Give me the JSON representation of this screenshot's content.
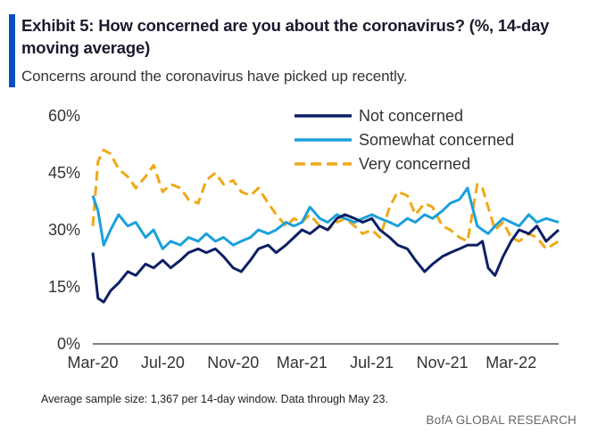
{
  "header": {
    "title": "Exhibit 5: How concerned are you about the coronavirus? (%, 14-day moving average)",
    "subtitle": "Concerns around the coronavirus have picked up recently."
  },
  "footer": {
    "note": "Average sample size: 1,367  per 14-day window.  Data through May 23.",
    "source": "BofA GLOBAL RESEARCH"
  },
  "colors": {
    "accent": "#0a4fc2",
    "not_concerned": "#0d1f66",
    "somewhat_concerned": "#1aa0dc",
    "very_concerned": "#f0a818"
  },
  "chart_data": {
    "type": "line",
    "title": "How concerned are you about the coronavirus? (%, 14-day moving average)",
    "x_tick_labels": [
      "Mar-20",
      "Jul-20",
      "Nov-20",
      "Mar-21",
      "Jul-21",
      "Nov-21",
      "Mar-22"
    ],
    "y_tick_labels": [
      "0%",
      "15%",
      "30%",
      "45%",
      "60%"
    ],
    "ylim": [
      0,
      60
    ],
    "xlim": [
      "2020-03-01",
      "2022-05-23"
    ],
    "grid": false,
    "legend_position": "top-right",
    "series": [
      {
        "name": "Not concerned",
        "style": "solid",
        "x": [
          "2020-03-01",
          "2020-03-10",
          "2020-03-20",
          "2020-04-01",
          "2020-04-15",
          "2020-05-01",
          "2020-05-15",
          "2020-06-01",
          "2020-06-15",
          "2020-07-01",
          "2020-07-15",
          "2020-08-01",
          "2020-08-15",
          "2020-09-01",
          "2020-09-15",
          "2020-10-01",
          "2020-10-15",
          "2020-11-01",
          "2020-11-15",
          "2020-12-01",
          "2020-12-15",
          "2021-01-01",
          "2021-01-15",
          "2021-02-01",
          "2021-02-15",
          "2021-03-01",
          "2021-03-15",
          "2021-04-01",
          "2021-04-15",
          "2021-05-01",
          "2021-05-15",
          "2021-06-01",
          "2021-06-15",
          "2021-07-01",
          "2021-07-15",
          "2021-08-01",
          "2021-08-15",
          "2021-09-01",
          "2021-09-15",
          "2021-10-01",
          "2021-10-15",
          "2021-11-01",
          "2021-11-15",
          "2021-12-01",
          "2021-12-15",
          "2022-01-01",
          "2022-01-10",
          "2022-01-20",
          "2022-02-01",
          "2022-02-15",
          "2022-03-01",
          "2022-03-15",
          "2022-04-01",
          "2022-04-15",
          "2022-05-01",
          "2022-05-23"
        ],
        "values": [
          24,
          12,
          11,
          14,
          16,
          19,
          18,
          21,
          20,
          22,
          20,
          22,
          24,
          25,
          24,
          25,
          23,
          20,
          19,
          22,
          25,
          26,
          24,
          26,
          28,
          30,
          29,
          31,
          30,
          33,
          34,
          33,
          32,
          33,
          30,
          28,
          26,
          25,
          22,
          19,
          21,
          23,
          24,
          25,
          26,
          26,
          27,
          20,
          18,
          23,
          27,
          30,
          29,
          31,
          27,
          30
        ]
      },
      {
        "name": "Somewhat concerned",
        "style": "solid",
        "x": [
          "2020-03-01",
          "2020-03-10",
          "2020-03-20",
          "2020-04-01",
          "2020-04-15",
          "2020-05-01",
          "2020-05-15",
          "2020-06-01",
          "2020-06-15",
          "2020-07-01",
          "2020-07-15",
          "2020-08-01",
          "2020-08-15",
          "2020-09-01",
          "2020-09-15",
          "2020-10-01",
          "2020-10-15",
          "2020-11-01",
          "2020-11-15",
          "2020-12-01",
          "2020-12-15",
          "2021-01-01",
          "2021-01-15",
          "2021-02-01",
          "2021-02-15",
          "2021-03-01",
          "2021-03-15",
          "2021-04-01",
          "2021-04-15",
          "2021-05-01",
          "2021-05-15",
          "2021-06-01",
          "2021-06-15",
          "2021-07-01",
          "2021-07-15",
          "2021-08-01",
          "2021-08-15",
          "2021-09-01",
          "2021-09-15",
          "2021-10-01",
          "2021-10-15",
          "2021-11-01",
          "2021-11-15",
          "2021-12-01",
          "2021-12-15",
          "2022-01-01",
          "2022-01-10",
          "2022-01-20",
          "2022-02-01",
          "2022-02-15",
          "2022-03-01",
          "2022-03-15",
          "2022-04-01",
          "2022-04-15",
          "2022-05-01",
          "2022-05-23"
        ],
        "values": [
          39,
          35,
          26,
          30,
          34,
          31,
          32,
          28,
          30,
          25,
          27,
          26,
          28,
          27,
          29,
          27,
          28,
          26,
          27,
          28,
          30,
          29,
          30,
          32,
          31,
          32,
          36,
          33,
          32,
          34,
          33,
          32,
          33,
          34,
          33,
          32,
          31,
          33,
          32,
          34,
          33,
          35,
          37,
          38,
          41,
          31,
          30,
          29,
          31,
          33,
          32,
          31,
          34,
          32,
          33,
          32
        ]
      },
      {
        "name": "Very concerned",
        "style": "dashed",
        "x": [
          "2020-03-01",
          "2020-03-10",
          "2020-03-20",
          "2020-04-01",
          "2020-04-15",
          "2020-05-01",
          "2020-05-15",
          "2020-06-01",
          "2020-06-15",
          "2020-07-01",
          "2020-07-15",
          "2020-08-01",
          "2020-08-15",
          "2020-09-01",
          "2020-09-15",
          "2020-10-01",
          "2020-10-15",
          "2020-11-01",
          "2020-11-15",
          "2020-12-01",
          "2020-12-15",
          "2021-01-01",
          "2021-01-15",
          "2021-02-01",
          "2021-02-15",
          "2021-03-01",
          "2021-03-15",
          "2021-04-01",
          "2021-04-15",
          "2021-05-01",
          "2021-05-15",
          "2021-06-01",
          "2021-06-15",
          "2021-07-01",
          "2021-07-15",
          "2021-08-01",
          "2021-08-15",
          "2021-09-01",
          "2021-09-15",
          "2021-10-01",
          "2021-10-15",
          "2021-11-01",
          "2021-11-15",
          "2021-12-01",
          "2021-12-15",
          "2022-01-01",
          "2022-01-10",
          "2022-01-20",
          "2022-02-01",
          "2022-02-15",
          "2022-03-01",
          "2022-03-15",
          "2022-04-01",
          "2022-04-15",
          "2022-05-01",
          "2022-05-23"
        ],
        "values": [
          31,
          48,
          51,
          50,
          46,
          44,
          41,
          44,
          47,
          40,
          42,
          41,
          38,
          37,
          43,
          45,
          42,
          43,
          40,
          39,
          41,
          37,
          34,
          31,
          33,
          32,
          34,
          31,
          30,
          32,
          33,
          31,
          29,
          30,
          28,
          36,
          40,
          39,
          34,
          37,
          36,
          31,
          30,
          28,
          27,
          42,
          41,
          36,
          30,
          32,
          28,
          27,
          29,
          28,
          25,
          27
        ]
      }
    ]
  }
}
